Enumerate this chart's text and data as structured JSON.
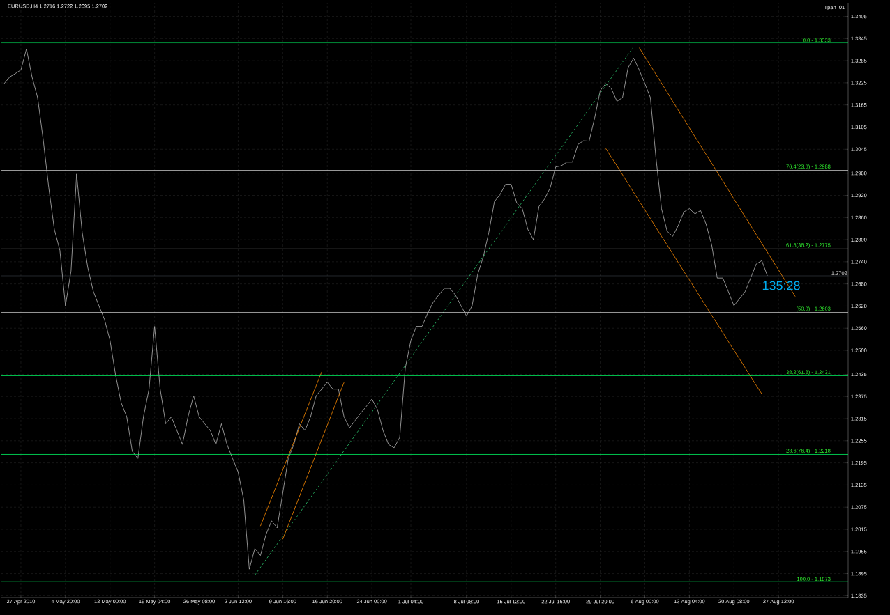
{
  "chart_data": {
    "type": "line",
    "title": "EURUSD,H4  1.2716 1.2722 1.2695 1.2702",
    "categories": [
      null,
      null,
      null,
      "27 Apr 2010",
      null,
      null,
      null,
      null,
      null,
      null,
      null,
      "4 May 20:00",
      null,
      null,
      null,
      null,
      null,
      null,
      null,
      "12 May 00:00",
      null,
      null,
      null,
      null,
      null,
      null,
      null,
      "19 May 04:00",
      null,
      null,
      null,
      null,
      null,
      null,
      null,
      "26 May 08:00",
      null,
      null,
      null,
      null,
      null,
      null,
      "2 Jun 12:00",
      null,
      null,
      null,
      null,
      null,
      null,
      null,
      "9 Jun 16:00",
      null,
      null,
      null,
      null,
      null,
      null,
      null,
      "16 Jun 20:00",
      null,
      null,
      null,
      null,
      null,
      null,
      null,
      "24 Jun 00:00",
      null,
      null,
      null,
      null,
      null,
      null,
      "1 Jul 04:00",
      null,
      null,
      null,
      null,
      null,
      null,
      null,
      null,
      null,
      "8 Jul 08:00",
      null,
      null,
      null,
      null,
      null,
      null,
      null,
      "15 Jul 12:00",
      null,
      null,
      null,
      null,
      null,
      null,
      null,
      "22 Jul 16:00",
      null,
      null,
      null,
      null,
      null,
      null,
      null,
      "29 Jul 20:00",
      null,
      null,
      null,
      null,
      null,
      null,
      null,
      "6 Aug 00:00",
      null,
      null,
      null,
      null,
      null,
      null,
      null,
      "13 Aug 04:00",
      null,
      null,
      null,
      null,
      null,
      null,
      null,
      "20 Aug 08:00",
      null,
      null,
      null,
      null,
      null,
      null,
      null,
      "27 Aug 12:00",
      null,
      null,
      null,
      null,
      null,
      null,
      null,
      null,
      null,
      null,
      null,
      null
    ],
    "ylim": [
      1.183,
      1.344
    ],
    "yticks": [
      {
        "value": 1.1835,
        "label": "1.1835"
      },
      {
        "value": 1.1895,
        "label": "1.1895"
      },
      {
        "value": 1.1955,
        "label": "1.1955"
      },
      {
        "value": 1.2015,
        "label": "1.2015"
      },
      {
        "value": 1.2075,
        "label": "1.2075"
      },
      {
        "value": 1.2135,
        "label": "1.2135"
      },
      {
        "value": 1.2195,
        "label": "1.2195"
      },
      {
        "value": 1.2255,
        "label": "1.2255"
      },
      {
        "value": 1.2315,
        "label": "1.2315"
      },
      {
        "value": 1.2375,
        "label": "1.2375"
      },
      {
        "value": 1.2435,
        "label": "1.2435"
      },
      {
        "value": 1.25,
        "label": "1.2500"
      },
      {
        "value": 1.256,
        "label": "1.2560"
      },
      {
        "value": 1.262,
        "label": "1.2620"
      },
      {
        "value": 1.268,
        "label": "1.2680"
      },
      {
        "value": 1.274,
        "label": "1.2740"
      },
      {
        "value": 1.28,
        "label": "1.2800"
      },
      {
        "value": 1.286,
        "label": "1.2860"
      },
      {
        "value": 1.292,
        "label": "1.2920"
      },
      {
        "value": 1.298,
        "label": "1.2980"
      },
      {
        "value": 1.3045,
        "label": "1.3045"
      },
      {
        "value": 1.3105,
        "label": "1.3105"
      },
      {
        "value": 1.3165,
        "label": "1.3165"
      },
      {
        "value": 1.3225,
        "label": "1.3225"
      },
      {
        "value": 1.3285,
        "label": "1.3285"
      },
      {
        "value": 1.3345,
        "label": "1.3345"
      },
      {
        "value": 1.3405,
        "label": "1.3405"
      }
    ],
    "grid": true,
    "series": [
      {
        "color": "#b4b4b4",
        "line_style": "solid",
        "values": [
          1.3223,
          1.3241,
          1.325,
          1.326,
          1.3317,
          1.3241,
          1.3185,
          1.3072,
          1.2941,
          1.2828,
          1.2771,
          1.2621,
          1.2715,
          1.2978,
          1.282,
          1.2725,
          1.266,
          1.2621,
          1.2584,
          1.2527,
          1.2433,
          1.2358,
          1.232,
          1.2226,
          1.2207,
          1.232,
          1.2395,
          1.2565,
          1.2395,
          1.2301,
          1.232,
          1.2283,
          1.2245,
          1.232,
          1.2377,
          1.232,
          1.2301,
          1.2283,
          1.2245,
          1.2301,
          1.2245,
          1.2207,
          1.217,
          1.2095,
          1.1907,
          1.1963,
          1.1944,
          1.2001,
          1.2038,
          1.2019,
          1.2113,
          1.2207,
          1.2245,
          1.2301,
          1.2283,
          1.232,
          1.2377,
          1.2395,
          1.2414,
          1.2395,
          1.2395,
          1.232,
          1.229,
          1.231,
          1.233,
          1.2348,
          1.2368,
          1.234,
          1.2283,
          1.2245,
          1.2236,
          1.2264,
          1.2452,
          1.2527,
          1.2565,
          1.2565,
          1.26,
          1.263,
          1.265,
          1.2668,
          1.2668,
          1.265,
          1.2621,
          1.2593,
          1.2621,
          1.2706,
          1.2753,
          1.282,
          1.2903,
          1.2922,
          1.295,
          1.295,
          1.29,
          1.2884,
          1.2828,
          1.28,
          1.289,
          1.291,
          1.294,
          1.2997,
          1.3,
          1.301,
          1.301,
          1.3058,
          1.3068,
          1.3067,
          1.313,
          1.3204,
          1.3223,
          1.3209,
          1.3175,
          1.3185,
          1.3266,
          1.3292,
          1.326,
          1.3223,
          1.3185,
          1.3022,
          1.2884,
          1.2823,
          1.2809,
          1.2838,
          1.2875,
          1.2884,
          1.287,
          1.2879,
          1.2842,
          1.2786,
          1.2696,
          1.2696,
          1.2659,
          1.2621,
          1.264,
          1.2659,
          1.2696,
          1.2734,
          1.2743,
          1.2702,
          null,
          null,
          null,
          null,
          null,
          null,
          null,
          null,
          null,
          null,
          null,
          null,
          null,
          null
        ]
      },
      {
        "color": "#ff8c00",
        "line_style": "solid",
        "values": [
          null,
          null,
          null,
          null,
          null,
          null,
          null,
          null,
          null,
          null,
          null,
          null,
          null,
          null,
          null,
          null,
          null,
          null,
          null,
          null,
          null,
          null,
          null,
          null,
          null,
          null,
          null,
          null,
          null,
          null,
          null,
          null,
          null,
          null,
          null,
          null,
          null,
          null,
          null,
          null,
          null,
          null,
          null,
          null,
          null,
          null,
          1.2024,
          1.2062,
          1.21,
          1.2138,
          1.2176,
          1.2214,
          1.2252,
          1.229,
          1.2328,
          1.2366,
          1.2404,
          1.2442,
          null,
          null,
          null,
          null,
          null,
          null,
          null,
          null,
          null,
          null,
          null,
          null,
          null,
          null,
          null,
          null,
          null,
          null,
          null,
          null,
          null,
          null,
          null,
          null,
          null,
          null,
          null,
          null,
          null,
          null,
          null,
          null,
          null,
          null,
          null,
          null,
          null,
          null,
          null,
          null,
          null,
          null,
          null,
          null,
          null,
          null,
          null,
          null,
          null,
          null,
          null,
          null,
          null,
          null,
          null,
          null,
          null,
          null,
          null,
          null,
          null,
          null,
          null,
          null,
          null,
          null,
          null,
          null,
          null,
          null,
          null,
          null,
          null,
          null,
          null,
          null,
          null,
          null,
          null,
          null,
          null,
          null,
          null,
          null,
          null,
          null,
          null,
          null,
          null,
          null,
          null,
          null,
          null,
          null
        ]
      },
      {
        "color": "#ff8c00",
        "line_style": "solid",
        "values": [
          null,
          null,
          null,
          null,
          null,
          null,
          null,
          null,
          null,
          null,
          null,
          null,
          null,
          null,
          null,
          null,
          null,
          null,
          null,
          null,
          null,
          null,
          null,
          null,
          null,
          null,
          null,
          null,
          null,
          null,
          null,
          null,
          null,
          null,
          null,
          null,
          null,
          null,
          null,
          null,
          null,
          null,
          null,
          null,
          null,
          null,
          null,
          null,
          null,
          null,
          1.1988,
          1.2027,
          1.2065,
          1.2104,
          1.2143,
          1.2181,
          1.222,
          1.2259,
          1.2297,
          1.2336,
          1.2375,
          1.2413,
          null,
          null,
          null,
          null,
          null,
          null,
          null,
          null,
          null,
          null,
          null,
          null,
          null,
          null,
          null,
          null,
          null,
          null,
          null,
          null,
          null,
          null,
          null,
          null,
          null,
          null,
          null,
          null,
          null,
          null,
          null,
          null,
          null,
          null,
          null,
          null,
          null,
          null,
          null,
          null,
          null,
          null,
          null,
          null,
          null,
          null,
          null,
          null,
          null,
          null,
          null,
          null,
          null,
          null,
          null,
          null,
          null,
          null,
          null,
          null,
          null,
          null,
          null,
          null,
          null,
          null,
          null,
          null,
          null,
          null,
          null,
          null,
          null,
          null,
          null,
          null,
          null,
          null,
          null,
          null,
          null,
          null,
          null,
          null,
          null,
          null,
          null,
          null,
          null,
          null
        ]
      },
      {
        "color": "#ff8c00",
        "line_style": "solid",
        "values": [
          null,
          null,
          null,
          null,
          null,
          null,
          null,
          null,
          null,
          null,
          null,
          null,
          null,
          null,
          null,
          null,
          null,
          null,
          null,
          null,
          null,
          null,
          null,
          null,
          null,
          null,
          null,
          null,
          null,
          null,
          null,
          null,
          null,
          null,
          null,
          null,
          null,
          null,
          null,
          null,
          null,
          null,
          null,
          null,
          null,
          null,
          null,
          null,
          null,
          null,
          null,
          null,
          null,
          null,
          null,
          null,
          null,
          null,
          null,
          null,
          null,
          null,
          null,
          null,
          null,
          null,
          null,
          null,
          null,
          null,
          null,
          null,
          null,
          null,
          null,
          null,
          null,
          null,
          null,
          null,
          null,
          null,
          null,
          null,
          null,
          null,
          null,
          null,
          null,
          null,
          null,
          null,
          null,
          null,
          null,
          null,
          null,
          null,
          null,
          null,
          null,
          null,
          null,
          null,
          null,
          null,
          null,
          null,
          null,
          null,
          null,
          null,
          null,
          null,
          1.332,
          1.3296,
          1.3272,
          1.3248,
          1.3224,
          1.32,
          1.3175,
          1.3151,
          1.3127,
          1.3103,
          1.3079,
          1.3055,
          1.3031,
          1.3007,
          1.2983,
          1.2959,
          1.2935,
          1.291,
          1.2886,
          1.2862,
          1.2838,
          1.2814,
          1.279,
          1.2766,
          1.2742,
          1.2718,
          1.2694,
          1.267,
          1.2646,
          null,
          null,
          null,
          null,
          null,
          null,
          null,
          null,
          null
        ]
      },
      {
        "color": "#ff8c00",
        "line_style": "solid",
        "values": [
          null,
          null,
          null,
          null,
          null,
          null,
          null,
          null,
          null,
          null,
          null,
          null,
          null,
          null,
          null,
          null,
          null,
          null,
          null,
          null,
          null,
          null,
          null,
          null,
          null,
          null,
          null,
          null,
          null,
          null,
          null,
          null,
          null,
          null,
          null,
          null,
          null,
          null,
          null,
          null,
          null,
          null,
          null,
          null,
          null,
          null,
          null,
          null,
          null,
          null,
          null,
          null,
          null,
          null,
          null,
          null,
          null,
          null,
          null,
          null,
          null,
          null,
          null,
          null,
          null,
          null,
          null,
          null,
          null,
          null,
          null,
          null,
          null,
          null,
          null,
          null,
          null,
          null,
          null,
          null,
          null,
          null,
          null,
          null,
          null,
          null,
          null,
          null,
          null,
          null,
          null,
          null,
          null,
          null,
          null,
          null,
          null,
          null,
          null,
          null,
          null,
          null,
          null,
          null,
          null,
          null,
          null,
          null,
          1.3047,
          1.3023,
          1.3,
          1.2976,
          1.2952,
          1.2928,
          1.2904,
          1.2881,
          1.2857,
          1.2833,
          1.2809,
          1.2786,
          1.2762,
          1.2738,
          1.2714,
          1.2691,
          1.2667,
          1.2643,
          1.2619,
          1.2595,
          1.2572,
          1.2548,
          1.2524,
          1.25,
          1.2477,
          1.2453,
          1.2429,
          1.2405,
          1.2382,
          null,
          null,
          null,
          null,
          null,
          null,
          null,
          null,
          null,
          null,
          null,
          null,
          null,
          null,
          null
        ]
      },
      {
        "color": "#2ecc71",
        "line_style": "dashed",
        "values": [
          null,
          null,
          null,
          null,
          null,
          null,
          null,
          null,
          null,
          null,
          null,
          null,
          null,
          null,
          null,
          null,
          null,
          null,
          null,
          null,
          null,
          null,
          null,
          null,
          null,
          null,
          null,
          null,
          null,
          null,
          null,
          null,
          null,
          null,
          null,
          null,
          null,
          null,
          null,
          null,
          null,
          null,
          null,
          null,
          null,
          1.1891,
          1.1912,
          1.1933,
          1.1954,
          1.1975,
          1.1996,
          1.2017,
          1.2038,
          1.2059,
          1.208,
          1.2101,
          1.2122,
          1.2143,
          1.2164,
          1.2185,
          1.2207,
          1.2228,
          1.2249,
          1.227,
          1.2291,
          1.2312,
          1.2333,
          1.2354,
          1.2375,
          1.2396,
          1.2417,
          1.2438,
          1.2459,
          1.248,
          1.2502,
          1.2523,
          1.2544,
          1.2565,
          1.2586,
          1.2607,
          1.2628,
          1.2649,
          1.267,
          1.2691,
          1.2712,
          1.2733,
          1.2754,
          1.2775,
          1.2796,
          1.2817,
          1.2838,
          1.286,
          1.2881,
          1.2902,
          1.2923,
          1.2944,
          1.2965,
          1.2986,
          1.3007,
          1.3028,
          1.3049,
          1.307,
          1.3091,
          1.3112,
          1.3133,
          1.3155,
          1.3176,
          1.3197,
          1.3218,
          1.3239,
          1.326,
          1.3281,
          1.3302,
          1.3323,
          null,
          null,
          null,
          null,
          null,
          null,
          null,
          null,
          null,
          null,
          null,
          null,
          null,
          null,
          null,
          null,
          null,
          null,
          null,
          null,
          null,
          null,
          null,
          null,
          null,
          null,
          null,
          null,
          null,
          null,
          null,
          null,
          null,
          null,
          null,
          null,
          null,
          null
        ]
      }
    ],
    "ref_lines": [
      {
        "axis": "y",
        "value": 1.3333,
        "color": "#00ff66"
      },
      {
        "axis": "y",
        "value": 1.2988,
        "color": "#c8c8c8"
      },
      {
        "axis": "y",
        "value": 1.2775,
        "color": "#c8c8c8"
      },
      {
        "axis": "y",
        "value": 1.2603,
        "color": "#c8c8c8"
      },
      {
        "axis": "y",
        "value": 1.2431,
        "color": "#00ff66"
      },
      {
        "axis": "y",
        "value": 1.2218,
        "color": "#00ff66"
      },
      {
        "axis": "y",
        "value": 1.1873,
        "color": "#00ff66"
      },
      {
        "axis": "y",
        "value": 1.2702,
        "label": "1.2702",
        "color": "#5a6470"
      }
    ],
    "annotations": [
      "Tpan_01",
      "135:28",
      {
        "text": "0.0 - 1.3333",
        "y": 1.3333
      },
      {
        "text": "76.4(23.6) - 1.2988",
        "y": 1.2988
      },
      {
        "text": "61.8(38.2) - 1.2775",
        "y": 1.2775
      },
      {
        "text": "(50.0) - 1.2603",
        "y": 1.2603
      },
      {
        "text": "38.2(61.8) - 1.2431",
        "y": 1.2431
      },
      {
        "text": "23.6(76.4) - 1.2218",
        "y": 1.2218
      },
      {
        "text": "100.0 - 1.1873",
        "y": 1.1873
      }
    ]
  }
}
